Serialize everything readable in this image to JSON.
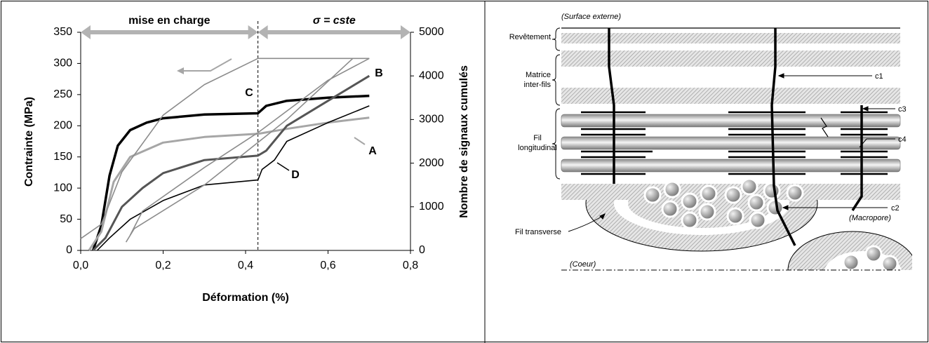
{
  "chart_data": {
    "type": "line",
    "xlabel": "Déformation (%)",
    "ylabel": "Contrainte (MPa)",
    "y2label": "Nombre de signaux cumulés",
    "xlim": [
      0,
      0.8
    ],
    "xticks": [
      {
        "value": 0,
        "label": "0,0"
      },
      {
        "value": 0.2,
        "label": "0,2"
      },
      {
        "value": 0.4,
        "label": "0,4"
      },
      {
        "value": 0.6,
        "label": "0,6"
      },
      {
        "value": 0.8,
        "label": "0,8"
      }
    ],
    "ylim": [
      0,
      350
    ],
    "yticks": [
      0,
      50,
      100,
      150,
      200,
      250,
      300,
      350
    ],
    "y2lim": [
      0,
      5000
    ],
    "y2ticks": [
      0,
      1000,
      2000,
      3000,
      4000,
      5000
    ],
    "phases": [
      {
        "label": "mise en charge",
        "from": 0,
        "to": 0.43
      },
      {
        "label": "σ = cste",
        "from": 0.43,
        "to": 0.8
      }
    ],
    "series": [
      {
        "label": "C",
        "color": "#000000",
        "line_width": 3.5,
        "x": [
          0.03,
          0.05,
          0.07,
          0.09,
          0.12,
          0.16,
          0.2,
          0.3,
          0.43,
          0.45,
          0.5,
          0.6,
          0.7
        ],
        "values": [
          0,
          40,
          120,
          168,
          193,
          205,
          212,
          218,
          220,
          232,
          240,
          245,
          248
        ]
      },
      {
        "label": "A",
        "color": "#a6a6a6",
        "line_width": 3,
        "x": [
          0.02,
          0.05,
          0.08,
          0.12,
          0.2,
          0.3,
          0.43,
          0.5,
          0.6,
          0.7
        ],
        "values": [
          0,
          30,
          110,
          150,
          173,
          182,
          187,
          195,
          205,
          213
        ]
      },
      {
        "label": "B",
        "color": "#555555",
        "line_width": 3,
        "x": [
          0.03,
          0.06,
          0.1,
          0.15,
          0.2,
          0.3,
          0.43,
          0.45,
          0.5,
          0.6,
          0.7
        ],
        "values": [
          0,
          20,
          70,
          100,
          124,
          145,
          152,
          160,
          200,
          240,
          280
        ]
      },
      {
        "label": "D",
        "color": "#000000",
        "line_width": 1.6,
        "x": [
          0.04,
          0.07,
          0.12,
          0.2,
          0.3,
          0.43,
          0.44,
          0.47,
          0.5,
          0.6,
          0.7
        ],
        "values": [
          0,
          20,
          50,
          80,
          105,
          113,
          130,
          145,
          175,
          205,
          232
        ]
      },
      {
        "color": "#8c8c8c",
        "line_width": 1.6,
        "axis": "y2",
        "x": [
          0,
          0.05,
          0.1,
          0.2,
          0.3,
          0.43,
          0.5,
          0.7
        ],
        "values": [
          270,
          600,
          1800,
          3100,
          3800,
          4400,
          4400,
          4400
        ]
      },
      {
        "color": "#8c8c8c",
        "line_width": 1.6,
        "axis": "y2",
        "x": [
          0.11,
          0.13,
          0.3,
          0.5,
          0.66
        ],
        "values": [
          190,
          500,
          1500,
          3000,
          4400
        ]
      },
      {
        "color": "#8c8c8c",
        "line_width": 1.6,
        "axis": "y2",
        "x": [
          0.12,
          0.15,
          0.3,
          0.43,
          0.6,
          0.7
        ],
        "values": [
          350,
          900,
          1900,
          2700,
          3900,
          4400
        ]
      }
    ]
  },
  "diagram": {
    "surface": "(Surface externe)",
    "layers": [
      [
        "Revêtement"
      ],
      [
        "Matrice",
        "inter-fils"
      ],
      [
        "Fil",
        "longitudinal"
      ]
    ],
    "transverse": "Fil transverse",
    "core": "(Coeur)",
    "macropore": "(Macropore)",
    "cracks": [
      "c1",
      "c2",
      "c3",
      "c4"
    ]
  }
}
